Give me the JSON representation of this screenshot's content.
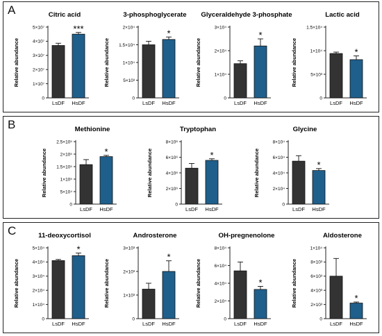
{
  "colors": {
    "LsDF": "#333333",
    "HsDF": "#1f5f8c"
  },
  "panels": [
    {
      "label": "A",
      "chart_data": [
        {
          "type": "bar",
          "title": "Citric acid",
          "categories": [
            "LsDF",
            "HsDF"
          ],
          "values": [
            37000000.0,
            45000000.0
          ],
          "errors": [
            1600000.0,
            1200000.0
          ],
          "sig": [
            "",
            "***"
          ],
          "ylim": [
            0,
            50000000.0
          ],
          "yticks": [
            0,
            10000000.0,
            20000000.0,
            30000000.0,
            40000000.0,
            50000000.0
          ],
          "yticklabels": [
            "0",
            "1×10⁷",
            "2×10⁷",
            "3×10⁷",
            "4×10⁷",
            "5×10⁷"
          ],
          "ylabel": "Relative abundance"
        },
        {
          "type": "bar",
          "title": "3-phosphoglycerate",
          "categories": [
            "LsDF",
            "HsDF"
          ],
          "values": [
            15000,
            16500
          ],
          "errors": [
            1000,
            700
          ],
          "sig": [
            "",
            "*"
          ],
          "ylim": [
            0,
            20000
          ],
          "yticks": [
            0,
            5000,
            10000,
            15000,
            20000
          ],
          "yticklabels": [
            "0",
            "5×10³",
            "1×10⁴",
            "1.5×10⁴",
            "2×10⁴"
          ],
          "ylabel": "Relative abundance"
        },
        {
          "type": "bar",
          "title": "Glyceraldehyde 3-phosphate",
          "categories": [
            "LsDF",
            "HsDF"
          ],
          "values": [
            14500,
            22000
          ],
          "errors": [
            1200,
            3000
          ],
          "sig": [
            "",
            "*"
          ],
          "ylim": [
            0,
            30000
          ],
          "yticks": [
            0,
            10000,
            20000,
            30000
          ],
          "yticklabels": [
            "0",
            "1×10⁴",
            "2×10⁴",
            "3×10⁴"
          ],
          "ylabel": "Relative abundance"
        },
        {
          "type": "bar",
          "title": "Lactic acid",
          "categories": [
            "LsDF",
            "HsDF"
          ],
          "values": [
            9400,
            8100
          ],
          "errors": [
            300,
            800
          ],
          "sig": [
            "",
            "*"
          ],
          "ylim": [
            0,
            15000
          ],
          "yticks": [
            0,
            5000,
            10000,
            15000
          ],
          "yticklabels": [
            "0",
            "5×10³",
            "1×10⁴",
            "1.5×10⁴"
          ],
          "ylabel": "Relative abundance"
        }
      ]
    },
    {
      "label": "B",
      "chart_data": [
        {
          "type": "bar",
          "title": "Methionine",
          "categories": [
            "LsDF",
            "HsDF"
          ],
          "values": [
            158000,
            190000
          ],
          "errors": [
            20000,
            5000
          ],
          "sig": [
            "",
            "*"
          ],
          "ylim": [
            0,
            250000
          ],
          "yticks": [
            0,
            50000,
            100000,
            150000,
            200000,
            250000
          ],
          "yticklabels": [
            "0",
            "5×10⁴",
            "1×10⁵",
            "1.5×10⁵",
            "2×10⁵",
            "2.5×10⁵"
          ],
          "ylabel": "Relative abundance"
        },
        {
          "type": "bar",
          "title": "Tryptophan",
          "categories": [
            "LsDF",
            "HsDF"
          ],
          "values": [
            4600000,
            5600000
          ],
          "errors": [
            600000,
            200000
          ],
          "sig": [
            "",
            "*"
          ],
          "ylim": [
            0,
            8000000
          ],
          "yticks": [
            0,
            2000000,
            4000000,
            6000000,
            8000000
          ],
          "yticklabels": [
            "0",
            "2×10⁶",
            "4×10⁶",
            "6×10⁶",
            "8×10⁶"
          ],
          "ylabel": "Relative abundance"
        },
        {
          "type": "bar",
          "title": "Glycine",
          "categories": [
            "LsDF",
            "HsDF"
          ],
          "values": [
            55000,
            43000
          ],
          "errors": [
            7000,
            2500
          ],
          "sig": [
            "",
            "*"
          ],
          "ylim": [
            0,
            80000
          ],
          "yticks": [
            0,
            20000,
            40000,
            60000,
            80000
          ],
          "yticklabels": [
            "0",
            "2×10⁴",
            "4×10⁴",
            "6×10⁴",
            "8×10⁴"
          ],
          "ylabel": "Relative abundance"
        }
      ]
    },
    {
      "label": "C",
      "chart_data": [
        {
          "type": "bar",
          "title": "11-deoxycortisol",
          "categories": [
            "LsDF",
            "HsDF"
          ],
          "values": [
            41000,
            44500
          ],
          "errors": [
            800,
            1800
          ],
          "sig": [
            "",
            "*"
          ],
          "ylim": [
            0,
            50000
          ],
          "yticks": [
            0,
            10000,
            20000,
            30000,
            40000,
            50000
          ],
          "yticklabels": [
            "0",
            "1×10⁴",
            "2×10⁴",
            "3×10⁴",
            "4×10⁴",
            "5×10⁴"
          ],
          "ylabel": "Relative abundance"
        },
        {
          "type": "bar",
          "title": "Androsterone",
          "categories": [
            "LsDF",
            "HsDF"
          ],
          "values": [
            1250,
            2000
          ],
          "errors": [
            250,
            450
          ],
          "sig": [
            "",
            "*"
          ],
          "ylim": [
            0,
            3000
          ],
          "yticks": [
            0,
            1000,
            2000,
            3000
          ],
          "yticklabels": [
            "0",
            "1×10³",
            "2×10³",
            "3×10³"
          ],
          "ylabel": "Relative abundance"
        },
        {
          "type": "bar",
          "title": "OH-pregnenolone",
          "categories": [
            "LsDF",
            "HsDF"
          ],
          "values": [
            54000,
            33000
          ],
          "errors": [
            10000,
            3500
          ],
          "sig": [
            "",
            "*"
          ],
          "ylim": [
            0,
            80000
          ],
          "yticks": [
            0,
            20000,
            40000,
            60000,
            80000
          ],
          "yticklabels": [
            "0",
            "2×10⁴",
            "4×10⁴",
            "6×10⁴",
            "8×10⁴"
          ],
          "ylabel": "Relative abundance"
        },
        {
          "type": "bar",
          "title": "Aldosterone",
          "categories": [
            "LsDF",
            "HsDF"
          ],
          "values": [
            6000,
            2200
          ],
          "errors": [
            2500,
            150
          ],
          "sig": [
            "",
            "*"
          ],
          "ylim": [
            0,
            10000
          ],
          "yticks": [
            0,
            2000,
            4000,
            6000,
            8000,
            10000
          ],
          "yticklabels": [
            "0",
            "2×10³",
            "4×10³",
            "6×10³",
            "8×10³",
            "1×10⁴"
          ],
          "ylabel": "Relative abundance"
        }
      ]
    }
  ]
}
